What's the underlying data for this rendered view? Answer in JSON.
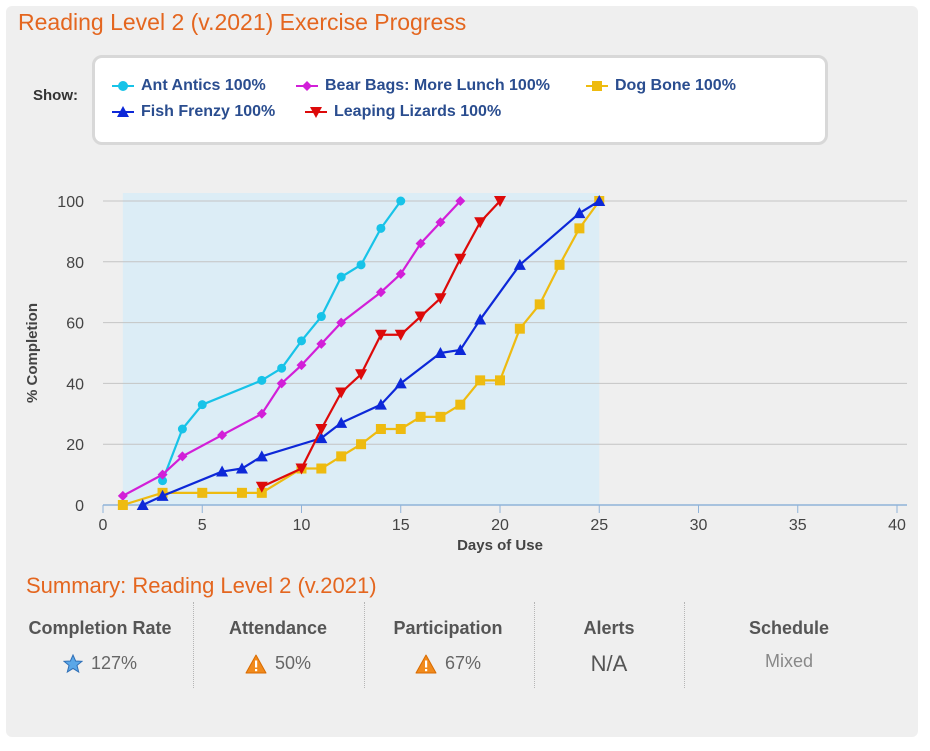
{
  "title": "Reading Level 2 (v.2021) Exercise Progress",
  "show_label": "Show:",
  "legend": [
    {
      "name": "Ant Antics 100%",
      "color": "#17c3e8",
      "marker": "circle"
    },
    {
      "name": "Bear Bags: More Lunch 100%",
      "color": "#d21fd8",
      "marker": "diamond"
    },
    {
      "name": "Dog Bone 100%",
      "color": "#eebb10",
      "marker": "square"
    },
    {
      "name": "Fish Frenzy 100%",
      "color": "#0d28d8",
      "marker": "triangle"
    },
    {
      "name": "Leaping Lizards 100%",
      "color": "#dd0a0a",
      "marker": "triangle-down"
    }
  ],
  "chart_data": {
    "type": "line",
    "title": "Reading Level 2 (v.2021) Exercise Progress",
    "xlabel": "Days of Use",
    "ylabel": "% Completion",
    "xlim": [
      0,
      40
    ],
    "ylim": [
      0,
      100
    ],
    "xticks": [
      0,
      5,
      10,
      15,
      20,
      25,
      30,
      35,
      40
    ],
    "yticks": [
      0,
      20,
      40,
      60,
      80,
      100
    ],
    "highlight_band": [
      1,
      25
    ],
    "grid": true,
    "series": [
      {
        "name": "Ant Antics",
        "color": "#17c3e8",
        "marker": "circle",
        "x": [
          3,
          4,
          5,
          8,
          9,
          10,
          11,
          12,
          13,
          14,
          15
        ],
        "y": [
          8,
          25,
          33,
          41,
          45,
          54,
          62,
          75,
          79,
          91,
          100
        ]
      },
      {
        "name": "Bear Bags: More Lunch",
        "color": "#d21fd8",
        "marker": "diamond",
        "x": [
          1,
          3,
          4,
          6,
          8,
          9,
          10,
          11,
          12,
          14,
          15,
          16,
          17,
          18
        ],
        "y": [
          3,
          10,
          16,
          23,
          30,
          40,
          46,
          53,
          60,
          70,
          76,
          86,
          93,
          100
        ]
      },
      {
        "name": "Dog Bone",
        "color": "#eebb10",
        "marker": "square",
        "x": [
          1,
          3,
          5,
          7,
          8,
          10,
          11,
          12,
          13,
          14,
          15,
          16,
          17,
          18,
          19,
          20,
          21,
          22,
          23,
          24,
          25
        ],
        "y": [
          0,
          4,
          4,
          4,
          4,
          12,
          12,
          16,
          20,
          25,
          25,
          29,
          29,
          33,
          41,
          41,
          58,
          66,
          79,
          91,
          100
        ]
      },
      {
        "name": "Fish Frenzy",
        "color": "#0d28d8",
        "marker": "triangle",
        "x": [
          2,
          3,
          6,
          7,
          8,
          11,
          12,
          14,
          15,
          17,
          18,
          19,
          21,
          24,
          25
        ],
        "y": [
          0,
          3,
          11,
          12,
          16,
          22,
          27,
          33,
          40,
          50,
          51,
          61,
          79,
          96,
          100
        ]
      },
      {
        "name": "Leaping Lizards",
        "color": "#dd0a0a",
        "marker": "triangle-down",
        "x": [
          8,
          10,
          11,
          12,
          13,
          14,
          15,
          16,
          17,
          18,
          19,
          20
        ],
        "y": [
          6,
          12,
          25,
          37,
          43,
          56,
          56,
          62,
          68,
          81,
          93,
          100
        ]
      }
    ]
  },
  "summary": {
    "title": "Summary: Reading Level 2 (v.2021)",
    "completion_rate": {
      "label": "Completion Rate",
      "value": "127%"
    },
    "attendance": {
      "label": "Attendance",
      "value": "50%"
    },
    "participation": {
      "label": "Participation",
      "value": "67%"
    },
    "alerts": {
      "label": "Alerts",
      "value": "N/A"
    },
    "schedule": {
      "label": "Schedule",
      "value": "Mixed"
    }
  }
}
